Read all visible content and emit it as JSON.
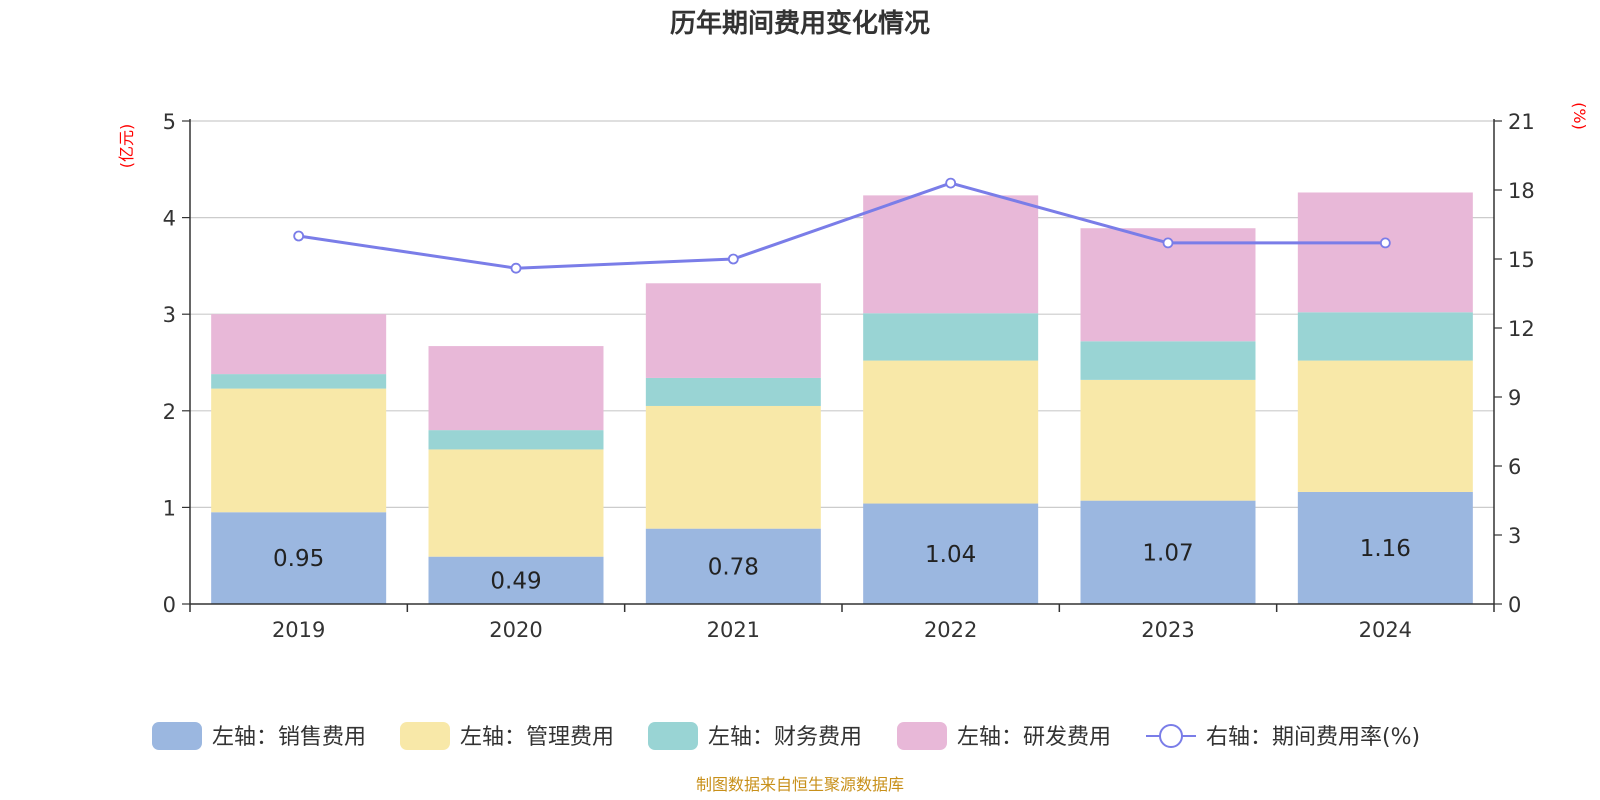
{
  "chart_data": {
    "type": "bar",
    "stacked": true,
    "title": "历年期间费用变化情况",
    "categories": [
      "2019",
      "2020",
      "2021",
      "2022",
      "2023",
      "2024"
    ],
    "left_axis": {
      "unit": "(亿元)",
      "ylim": [
        0,
        5
      ],
      "ticks": [
        "0",
        "1",
        "2",
        "3",
        "4",
        "5"
      ]
    },
    "right_axis": {
      "unit": "(%)",
      "ylim": [
        0,
        21
      ],
      "ticks": [
        "0",
        "3",
        "6",
        "9",
        "12",
        "15",
        "18",
        "21"
      ]
    },
    "series": [
      {
        "name": "左轴：销售费用",
        "color": "#9bb7e0",
        "values": [
          0.95,
          0.49,
          0.78,
          1.04,
          1.07,
          1.16
        ],
        "show_labels": true
      },
      {
        "name": "左轴：管理费用",
        "color": "#f8e8a8",
        "values": [
          1.28,
          1.11,
          1.27,
          1.48,
          1.25,
          1.36
        ],
        "show_labels": false
      },
      {
        "name": "左轴：财务费用",
        "color": "#99d4d4",
        "values": [
          0.15,
          0.2,
          0.29,
          0.49,
          0.4,
          0.5
        ],
        "show_labels": false
      },
      {
        "name": "左轴：研发费用",
        "color": "#e8b8d8",
        "values": [
          0.62,
          0.87,
          0.98,
          1.22,
          1.17,
          1.24
        ],
        "show_labels": false
      }
    ],
    "line_series": {
      "name": "右轴：期间费用率(%)",
      "color": "#7a7de8",
      "values": [
        16.0,
        14.6,
        15.0,
        18.3,
        15.7,
        15.7
      ]
    },
    "legend_position": "bottom",
    "grid": true
  },
  "footer": {
    "source": "制图数据来自恒生聚源数据库"
  }
}
